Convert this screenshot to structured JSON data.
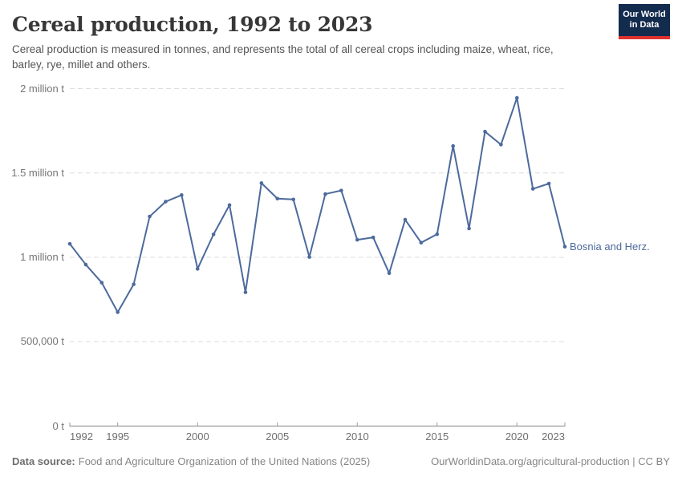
{
  "header": {
    "title": "Cereal production, 1992 to 2023",
    "subtitle": "Cereal production is measured in tonnes, and represents the total of all cereal crops including maize, wheat, rice, barley, rye, millet and others.",
    "logo": {
      "line1": "Our World",
      "line2": "in Data",
      "background_color": "#132C4E",
      "accent_color": "#E0312E"
    }
  },
  "chart_data": {
    "type": "line",
    "title": "Cereal production, 1992 to 2023",
    "unit": "tonnes",
    "xlabel": "",
    "ylabel": "",
    "xlim": [
      1992,
      2023
    ],
    "ylim": [
      0,
      2000000
    ],
    "grid": "horizontal-dashed",
    "legend_position": "end-of-line-label",
    "y_ticks": [
      {
        "value": 0,
        "label": "0 t"
      },
      {
        "value": 500000,
        "label": "500,000 t"
      },
      {
        "value": 1000000,
        "label": "1 million t"
      },
      {
        "value": 1500000,
        "label": "1.5 million t"
      },
      {
        "value": 2000000,
        "label": "2 million t"
      }
    ],
    "x_ticks": [
      {
        "value": 1992,
        "label": "1992"
      },
      {
        "value": 1995,
        "label": "1995"
      },
      {
        "value": 2000,
        "label": "2000"
      },
      {
        "value": 2005,
        "label": "2005"
      },
      {
        "value": 2010,
        "label": "2010"
      },
      {
        "value": 2015,
        "label": "2015"
      },
      {
        "value": 2020,
        "label": "2020"
      },
      {
        "value": 2023,
        "label": "2023"
      }
    ],
    "series": [
      {
        "name": "Bosnia and Herz.",
        "color": "#4C6A9C",
        "x": [
          1992,
          1993,
          1994,
          1995,
          1996,
          1997,
          1998,
          1999,
          2000,
          2001,
          2002,
          2003,
          2004,
          2005,
          2006,
          2007,
          2008,
          2009,
          2010,
          2011,
          2012,
          2013,
          2014,
          2015,
          2016,
          2017,
          2018,
          2019,
          2020,
          2021,
          2022,
          2023
        ],
        "values": [
          1080000,
          957000,
          850000,
          675000,
          840000,
          1242000,
          1330000,
          1369000,
          932000,
          1136000,
          1310000,
          793000,
          1440000,
          1348000,
          1343000,
          1002000,
          1375000,
          1396000,
          1104000,
          1118000,
          906000,
          1223000,
          1087000,
          1137000,
          1660000,
          1171000,
          1745000,
          1668000,
          1945000,
          1406000,
          1437000,
          1063000
        ]
      }
    ]
  },
  "footer": {
    "source_label": "Data source:",
    "source_text": "Food and Agriculture Organization of the United Nations (2025)",
    "credit": "OurWorldinData.org/agricultural-production | CC BY"
  }
}
